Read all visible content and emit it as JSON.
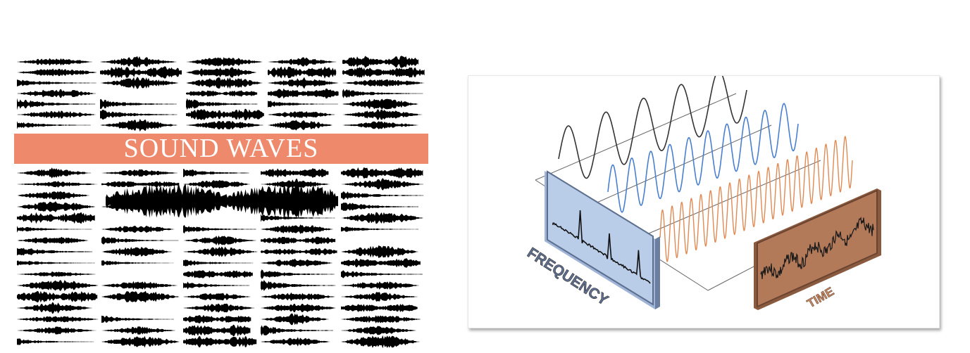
{
  "left": {
    "banner_text": "SOUND WAVES",
    "banner_color": "#ef896c"
  },
  "right": {
    "frequency_label": "FREQUENCY",
    "time_label": "TIME",
    "wave_colors": [
      "#333333",
      "#4a7fd0",
      "#e08a55"
    ],
    "frequency_panel_color": "#b9cce8",
    "time_panel_color": "#b37a5a"
  }
}
